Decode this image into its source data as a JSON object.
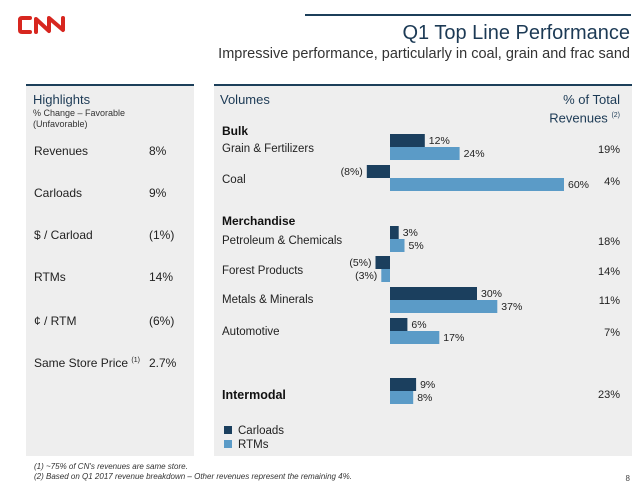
{
  "brand": {
    "logo_text": "CN",
    "logo_color": "#d7261f"
  },
  "header": {
    "title": "Q1 Top Line Performance",
    "subtitle": "Impressive performance, particularly in coal, grain and frac sand"
  },
  "highlights": {
    "title": "Highlights",
    "subtitle": "% Change – Favorable (Unfavorable)",
    "rows": [
      {
        "label": "Revenues",
        "sup": "",
        "value": "8%"
      },
      {
        "label": "Carloads",
        "sup": "",
        "value": "9%"
      },
      {
        "label": "$ / Carload",
        "sup": "",
        "value": "(1%)"
      },
      {
        "label": "RTMs",
        "sup": "",
        "value": "14%"
      },
      {
        "label": "¢ / RTM",
        "sup": "",
        "value": "(6%)"
      },
      {
        "label": "Same Store Price",
        "sup": "(1)",
        "value": "2.7%"
      }
    ]
  },
  "volumes": {
    "title": "Volumes",
    "share_title_line1": "% of Total",
    "share_title_line2": "Revenues",
    "share_title_sup": "(2)",
    "sections": {
      "bulk": "Bulk",
      "merchandise": "Merchandise",
      "intermodal": "Intermodal"
    }
  },
  "chart_data": {
    "type": "bar",
    "orientation": "horizontal",
    "categories": [
      "Grain & Fertilizers",
      "Coal",
      "Petroleum & Chemicals",
      "Forest Products",
      "Metals & Minerals",
      "Automotive",
      "Intermodal"
    ],
    "series": [
      {
        "name": "Carloads",
        "color": "#1b3f5e",
        "values": [
          12,
          -8,
          3,
          -5,
          30,
          6,
          9
        ],
        "labels": [
          "12%",
          "(8%)",
          "3%",
          "(5%)",
          "30%",
          "6%",
          "9%"
        ]
      },
      {
        "name": "RTMs",
        "color": "#5b9bc7",
        "values": [
          24,
          60,
          5,
          -3,
          37,
          17,
          8
        ],
        "labels": [
          "24%",
          "60%",
          "5%",
          "(3%)",
          "37%",
          "17%",
          "8%"
        ]
      }
    ],
    "revenue_share": [
      "19%",
      "4%",
      "18%",
      "14%",
      "11%",
      "7%",
      "23%"
    ]
  },
  "legend": {
    "carloads": "Carloads",
    "rtms": "RTMs"
  },
  "footnotes": {
    "note1": "(1)   ~75% of CN's revenues are same store.",
    "note2": "(2)   Based on Q1 2017 revenue breakdown – Other revenues represent the remaining 4%."
  },
  "page_number": "8"
}
